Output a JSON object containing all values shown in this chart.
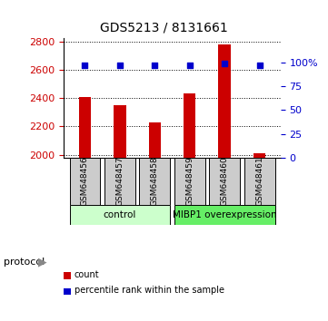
{
  "title": "GDS5213 / 8131661",
  "samples": [
    "GSM648456",
    "GSM648457",
    "GSM648458",
    "GSM648459",
    "GSM648460",
    "GSM648461"
  ],
  "counts": [
    2410,
    2350,
    2230,
    2430,
    2780,
    2012
  ],
  "percentile_ranks": [
    97,
    97,
    97,
    97,
    99,
    97
  ],
  "ylim_left": [
    1980,
    2820
  ],
  "ylim_right": [
    0,
    125
  ],
  "yticks_left": [
    2000,
    2200,
    2400,
    2600,
    2800
  ],
  "yticks_right": [
    0,
    25,
    50,
    75,
    100
  ],
  "yticklabels_right": [
    "0",
    "25",
    "50",
    "75",
    "100%"
  ],
  "bar_color": "#cc0000",
  "dot_color": "#0000cc",
  "grid_color": "#000000",
  "protocol_groups": [
    {
      "label": "control",
      "samples": [
        "GSM648456",
        "GSM648457",
        "GSM648458"
      ],
      "color": "#ccffcc"
    },
    {
      "label": "MIBP1 overexpression",
      "samples": [
        "GSM648459",
        "GSM648460",
        "GSM648461"
      ],
      "color": "#66ee66"
    }
  ],
  "legend_items": [
    {
      "label": "count",
      "color": "#cc0000"
    },
    {
      "label": "percentile rank within the sample",
      "color": "#0000cc"
    }
  ],
  "protocol_label": "protocol",
  "bg_color": "#ffffff",
  "tick_color_left": "#cc0000",
  "tick_color_right": "#0000cc"
}
